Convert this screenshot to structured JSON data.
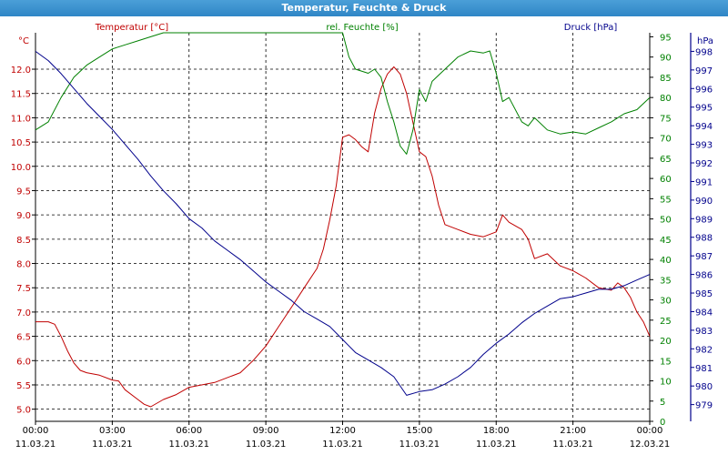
{
  "window": {
    "title": "Temperatur, Feuchte & Druck"
  },
  "chart_data": {
    "type": "line",
    "title": "Temperatur, Feuchte & Druck",
    "x_ticks": [
      {
        "time": "00:00",
        "date": "11.03.21"
      },
      {
        "time": "03:00",
        "date": "11.03.21"
      },
      {
        "time": "06:00",
        "date": "11.03.21"
      },
      {
        "time": "09:00",
        "date": "11.03.21"
      },
      {
        "time": "12:00",
        "date": "11.03.21"
      },
      {
        "time": "15:00",
        "date": "11.03.21"
      },
      {
        "time": "18:00",
        "date": "11.03.21"
      },
      {
        "time": "21:00",
        "date": "11.03.21"
      },
      {
        "time": "00:00",
        "date": "12.03.21"
      }
    ],
    "x_range_hours": [
      0,
      24
    ],
    "grid": true,
    "axes": {
      "temperature": {
        "label": "Temperatur [°C]",
        "unit": "°C",
        "color": "#c00000",
        "range": [
          4.75,
          12.75
        ],
        "ticks": [
          "5.0",
          "5.5",
          "6.0",
          "6.5",
          "7.0",
          "7.5",
          "8.0",
          "8.5",
          "9.0",
          "9.5",
          "10.0",
          "10.5",
          "11.0",
          "11.5",
          "12.0"
        ]
      },
      "humidity": {
        "label": "rel. Feuchte [%]",
        "unit": "%",
        "color": "#008000",
        "range": [
          0,
          96
        ],
        "ticks": [
          "0",
          "5",
          "10",
          "15",
          "20",
          "25",
          "30",
          "35",
          "40",
          "45",
          "50",
          "55",
          "60",
          "65",
          "70",
          "75",
          "80",
          "85",
          "90",
          "95"
        ]
      },
      "pressure": {
        "label": "Druck [hPa]",
        "unit": "hPa",
        "color": "#00008b",
        "range": [
          978.1,
          999
        ],
        "ticks": [
          "979",
          "980",
          "981",
          "982",
          "983",
          "984",
          "985",
          "986",
          "987",
          "988",
          "989",
          "990",
          "991",
          "992",
          "993",
          "994",
          "995",
          "996",
          "997",
          "998"
        ]
      }
    },
    "series": [
      {
        "name": "Temperatur [°C]",
        "axis": "temperature",
        "color": "#c00000",
        "points": [
          [
            0,
            6.8
          ],
          [
            0.5,
            6.8
          ],
          [
            0.75,
            6.75
          ],
          [
            1,
            6.5
          ],
          [
            1.25,
            6.2
          ],
          [
            1.5,
            5.95
          ],
          [
            1.75,
            5.8
          ],
          [
            2,
            5.75
          ],
          [
            2.5,
            5.7
          ],
          [
            3,
            5.6
          ],
          [
            3.25,
            5.58
          ],
          [
            3.5,
            5.4
          ],
          [
            4,
            5.2
          ],
          [
            4.25,
            5.1
          ],
          [
            4.5,
            5.05
          ],
          [
            5,
            5.2
          ],
          [
            5.5,
            5.3
          ],
          [
            6,
            5.45
          ],
          [
            7,
            5.55
          ],
          [
            8,
            5.75
          ],
          [
            8.5,
            6.0
          ],
          [
            9,
            6.3
          ],
          [
            9.5,
            6.7
          ],
          [
            10,
            7.1
          ],
          [
            10.5,
            7.5
          ],
          [
            11,
            7.9
          ],
          [
            11.25,
            8.3
          ],
          [
            11.5,
            8.9
          ],
          [
            11.75,
            9.6
          ],
          [
            12,
            10.6
          ],
          [
            12.25,
            10.65
          ],
          [
            12.5,
            10.55
          ],
          [
            12.75,
            10.4
          ],
          [
            13,
            10.3
          ],
          [
            13.25,
            11.1
          ],
          [
            13.5,
            11.6
          ],
          [
            13.75,
            11.9
          ],
          [
            14,
            12.05
          ],
          [
            14.25,
            11.9
          ],
          [
            14.5,
            11.5
          ],
          [
            14.75,
            10.9
          ],
          [
            15,
            10.3
          ],
          [
            15.25,
            10.2
          ],
          [
            15.5,
            9.8
          ],
          [
            15.75,
            9.2
          ],
          [
            16,
            8.8
          ],
          [
            16.5,
            8.7
          ],
          [
            17,
            8.6
          ],
          [
            17.5,
            8.55
          ],
          [
            18,
            8.65
          ],
          [
            18.25,
            9.0
          ],
          [
            18.5,
            8.85
          ],
          [
            19,
            8.7
          ],
          [
            19.25,
            8.5
          ],
          [
            19.5,
            8.1
          ],
          [
            20,
            8.2
          ],
          [
            20.5,
            7.95
          ],
          [
            21,
            7.85
          ],
          [
            21.5,
            7.7
          ],
          [
            22,
            7.5
          ],
          [
            22.5,
            7.45
          ],
          [
            22.75,
            7.6
          ],
          [
            23,
            7.5
          ],
          [
            23.25,
            7.3
          ],
          [
            23.5,
            7.0
          ],
          [
            23.75,
            6.8
          ],
          [
            24,
            6.5
          ]
        ]
      },
      {
        "name": "rel. Feuchte [%]",
        "axis": "humidity",
        "color": "#008000",
        "points": [
          [
            0,
            72
          ],
          [
            0.5,
            74
          ],
          [
            1,
            80
          ],
          [
            1.5,
            85
          ],
          [
            2,
            88
          ],
          [
            2.5,
            90
          ],
          [
            3,
            92
          ],
          [
            3.5,
            93
          ],
          [
            4,
            94
          ],
          [
            4.5,
            95
          ],
          [
            5,
            96
          ],
          [
            6,
            96.5
          ],
          [
            12,
            96.5
          ],
          [
            12.25,
            90
          ],
          [
            12.5,
            87
          ],
          [
            13,
            86
          ],
          [
            13.25,
            87
          ],
          [
            13.5,
            85
          ],
          [
            13.75,
            79
          ],
          [
            14,
            74
          ],
          [
            14.25,
            68
          ],
          [
            14.5,
            66
          ],
          [
            14.75,
            72
          ],
          [
            15,
            82
          ],
          [
            15.25,
            79
          ],
          [
            15.5,
            84
          ],
          [
            16,
            87
          ],
          [
            16.5,
            90
          ],
          [
            17,
            91.5
          ],
          [
            17.5,
            91
          ],
          [
            17.75,
            91.5
          ],
          [
            18,
            86
          ],
          [
            18.25,
            79
          ],
          [
            18.5,
            80
          ],
          [
            19,
            74
          ],
          [
            19.25,
            73
          ],
          [
            19.5,
            75
          ],
          [
            20,
            72
          ],
          [
            20.5,
            71
          ],
          [
            21,
            71.5
          ],
          [
            21.5,
            71
          ],
          [
            22,
            72.5
          ],
          [
            22.5,
            74
          ],
          [
            23,
            76
          ],
          [
            23.5,
            77
          ],
          [
            24,
            80
          ]
        ]
      },
      {
        "name": "Druck [hPa]",
        "axis": "pressure",
        "color": "#00008b",
        "points": [
          [
            0,
            998
          ],
          [
            0.5,
            997.5
          ],
          [
            1,
            996.8
          ],
          [
            1.5,
            996
          ],
          [
            2,
            995.2
          ],
          [
            2.5,
            994.5
          ],
          [
            3,
            993.8
          ],
          [
            3.5,
            993
          ],
          [
            4,
            992.2
          ],
          [
            4.5,
            991.3
          ],
          [
            5,
            990.5
          ],
          [
            5.5,
            989.8
          ],
          [
            6,
            989
          ],
          [
            6.5,
            988.5
          ],
          [
            7,
            987.8
          ],
          [
            7.5,
            987.3
          ],
          [
            8,
            986.8
          ],
          [
            8.5,
            986.2
          ],
          [
            9,
            985.6
          ],
          [
            9.5,
            985.1
          ],
          [
            10,
            984.6
          ],
          [
            10.5,
            984
          ],
          [
            11,
            983.6
          ],
          [
            11.5,
            983.2
          ],
          [
            12,
            982.5
          ],
          [
            12.5,
            981.8
          ],
          [
            13,
            981.4
          ],
          [
            13.5,
            981
          ],
          [
            14,
            980.5
          ],
          [
            14.5,
            979.5
          ],
          [
            15,
            979.7
          ],
          [
            15.5,
            979.8
          ],
          [
            16,
            980.1
          ],
          [
            16.5,
            980.5
          ],
          [
            17,
            981
          ],
          [
            17.5,
            981.7
          ],
          [
            18,
            982.3
          ],
          [
            18.5,
            982.8
          ],
          [
            19,
            983.4
          ],
          [
            19.5,
            983.9
          ],
          [
            20,
            984.3
          ],
          [
            20.5,
            984.7
          ],
          [
            21,
            984.8
          ],
          [
            21.5,
            985
          ],
          [
            22,
            985.2
          ],
          [
            22.5,
            985.2
          ],
          [
            23,
            985.4
          ],
          [
            23.5,
            985.7
          ],
          [
            24,
            986
          ]
        ]
      }
    ]
  }
}
